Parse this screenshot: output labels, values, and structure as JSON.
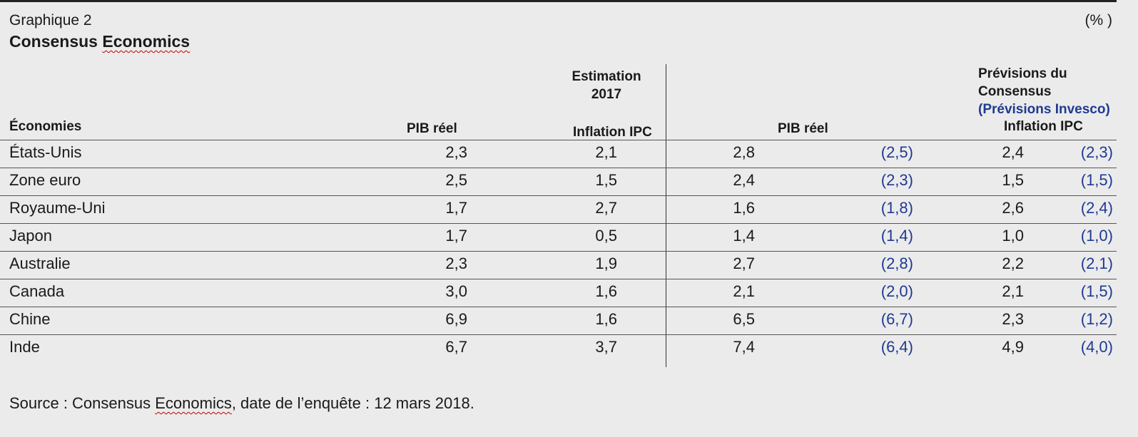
{
  "header": {
    "graph_label": "Graphique 2",
    "unit": "(% )",
    "title_prefix": "Consensus ",
    "title_word": "Economics"
  },
  "columns": {
    "economies": "Économies",
    "est_group_line1": "Estimation",
    "est_group_line2": "2017",
    "pib_reel_est": "PIB réel",
    "inflation_est": "Inflation IPC",
    "prev_line1": "Prévisions du",
    "prev_line2": "Consensus",
    "prev_line3": "(Prévisions Invesco)",
    "pib_reel_prev": "PIB réel",
    "inflation_prev": "Inflation IPC"
  },
  "rows": [
    {
      "name": "États-Unis",
      "pib_est": "2,3",
      "ipc_est": "2,1",
      "pib_cons": "2,8",
      "pib_inv": "(2,5)",
      "ipc_cons": "2,4",
      "ipc_inv": "(2,3)"
    },
    {
      "name": "Zone euro",
      "pib_est": "2,5",
      "ipc_est": "1,5",
      "pib_cons": "2,4",
      "pib_inv": "(2,3)",
      "ipc_cons": "1,5",
      "ipc_inv": "(1,5)"
    },
    {
      "name": "Royaume-Uni",
      "pib_est": "1,7",
      "ipc_est": "2,7",
      "pib_cons": "1,6",
      "pib_inv": "(1,8)",
      "ipc_cons": "2,6",
      "ipc_inv": "(2,4)"
    },
    {
      "name": "Japon",
      "pib_est": "1,7",
      "ipc_est": "0,5",
      "pib_cons": "1,4",
      "pib_inv": "(1,4)",
      "ipc_cons": "1,0",
      "ipc_inv": "(1,0)"
    },
    {
      "name": "Australie",
      "pib_est": "2,3",
      "ipc_est": "1,9",
      "pib_cons": "2,7",
      "pib_inv": "(2,8)",
      "ipc_cons": "2,2",
      "ipc_inv": "(2,1)"
    },
    {
      "name": "Canada",
      "pib_est": "3,0",
      "ipc_est": "1,6",
      "pib_cons": "2,1",
      "pib_inv": "(2,0)",
      "ipc_cons": "2,1",
      "ipc_inv": "(1,5)"
    },
    {
      "name": "Chine",
      "pib_est": "6,9",
      "ipc_est": "1,6",
      "pib_cons": "6,5",
      "pib_inv": "(6,7)",
      "ipc_cons": "2,3",
      "ipc_inv": "(1,2)"
    },
    {
      "name": "Inde",
      "pib_est": "6,7",
      "ipc_est": "3,7",
      "pib_cons": "7,4",
      "pib_inv": "(6,4)",
      "ipc_cons": "4,9",
      "ipc_inv": "(4,0)"
    }
  ],
  "source": {
    "prefix": "Source : Consensus ",
    "word": "Economics",
    "suffix": ", date de l’enquête : 12 mars 2018."
  }
}
